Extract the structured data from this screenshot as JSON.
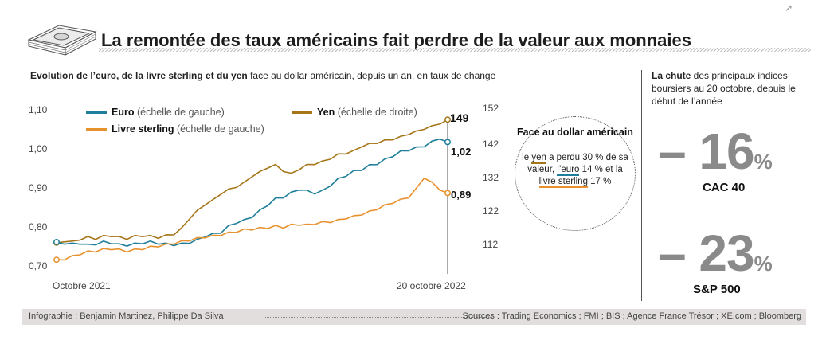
{
  "title": "La remontée des taux américains fait perdre de la valeur aux monnaies",
  "subtitle_bold": "Evolution de l’euro, de la livre sterling et du yen",
  "subtitle_rest": " face au dollar américain, depuis un an, en taux de change",
  "colors": {
    "euro": "#1f7f9a",
    "yen": "#a57517",
    "gbp": "#e8922f"
  },
  "callout": {
    "title": "Face au dollar américain",
    "l1a": "le ",
    "yen": "yen",
    "l1b": " a perdu 30 % de sa valeur,",
    "euro": "l’euro",
    "l2b": " 14 % et la ",
    "livre": "livre sterling",
    "l2c": " 17 %"
  },
  "right_panel": {
    "head_bold": "La chute",
    "head_rest": " des principaux indices boursiers au 20 octobre, depuis le début de l’année",
    "items": [
      {
        "value": "– 16",
        "unit": "%",
        "label": "CAC 40"
      },
      {
        "value": "– 23",
        "unit": "%",
        "label": "S&P 500"
      }
    ]
  },
  "footer": {
    "credit": "Infographie : Benjamin Martinez, Philippe Da Silva",
    "sources": "Sources : Trading Economics ; FMI ; BIS ; Agence France Trésor ; XE.com ; Bloomberg"
  },
  "chart_data": {
    "type": "line",
    "x_labels": [
      "Octobre 2021",
      "20 octobre 2022"
    ],
    "left_axis": {
      "ticks": [
        "1,10",
        "1,00",
        "0,90",
        "0,80",
        "0,70"
      ],
      "range": [
        0.7,
        1.1
      ]
    },
    "right_axis": {
      "ticks": [
        "152",
        "142",
        "132",
        "122",
        "112"
      ],
      "range": [
        104,
        152
      ]
    },
    "series": [
      {
        "name": "Euro",
        "note": "(échelle de gauche)",
        "axis": "left",
        "color": "#1f7f9a",
        "start": 0.765,
        "end": 1.02,
        "end_label": "1,02",
        "values": [
          0.765,
          0.762,
          0.76,
          0.762,
          0.757,
          0.76,
          0.765,
          0.763,
          0.758,
          0.757,
          0.76,
          0.763,
          0.765,
          0.762,
          0.76,
          0.758,
          0.76,
          0.764,
          0.77,
          0.78,
          0.785,
          0.79,
          0.805,
          0.815,
          0.82,
          0.83,
          0.845,
          0.86,
          0.875,
          0.88,
          0.89,
          0.9,
          0.895,
          0.89,
          0.895,
          0.91,
          0.925,
          0.935,
          0.945,
          0.95,
          0.96,
          0.965,
          0.975,
          0.985,
          0.995,
          1.0,
          1.005,
          1.01,
          1.02,
          1.03,
          1.02
        ]
      },
      {
        "name": "Yen",
        "note": "(échelle de droite)",
        "axis": "right",
        "color": "#a57517",
        "start": 114,
        "end": 149,
        "end_label": "149",
        "values": [
          114,
          114.5,
          114.2,
          115,
          115.5,
          115.2,
          115.8,
          116,
          115.5,
          115.2,
          115.8,
          116,
          115.8,
          115.5,
          116,
          116.5,
          118,
          121,
          123,
          125,
          126,
          128,
          129,
          130,
          131,
          133,
          134,
          135.5,
          136,
          134.5,
          133.5,
          135,
          136,
          136.5,
          137,
          138,
          139,
          139.5,
          140,
          141.5,
          142,
          142.5,
          143,
          143.5,
          144,
          145,
          145.5,
          146.5,
          147,
          148,
          149
        ]
      },
      {
        "name": "Livre sterling",
        "note": "(échelle de gauche)",
        "axis": "left",
        "color": "#e8922f",
        "start": 0.72,
        "end": 0.89,
        "end_label": "0,89",
        "values": [
          0.72,
          0.722,
          0.728,
          0.735,
          0.74,
          0.742,
          0.746,
          0.748,
          0.745,
          0.742,
          0.745,
          0.748,
          0.752,
          0.755,
          0.758,
          0.762,
          0.766,
          0.77,
          0.774,
          0.778,
          0.78,
          0.784,
          0.788,
          0.792,
          0.796,
          0.798,
          0.8,
          0.802,
          0.805,
          0.803,
          0.808,
          0.81,
          0.808,
          0.812,
          0.815,
          0.817,
          0.82,
          0.826,
          0.83,
          0.836,
          0.842,
          0.85,
          0.858,
          0.866,
          0.872,
          0.88,
          0.9,
          0.93,
          0.915,
          0.9,
          0.89
        ]
      }
    ]
  }
}
